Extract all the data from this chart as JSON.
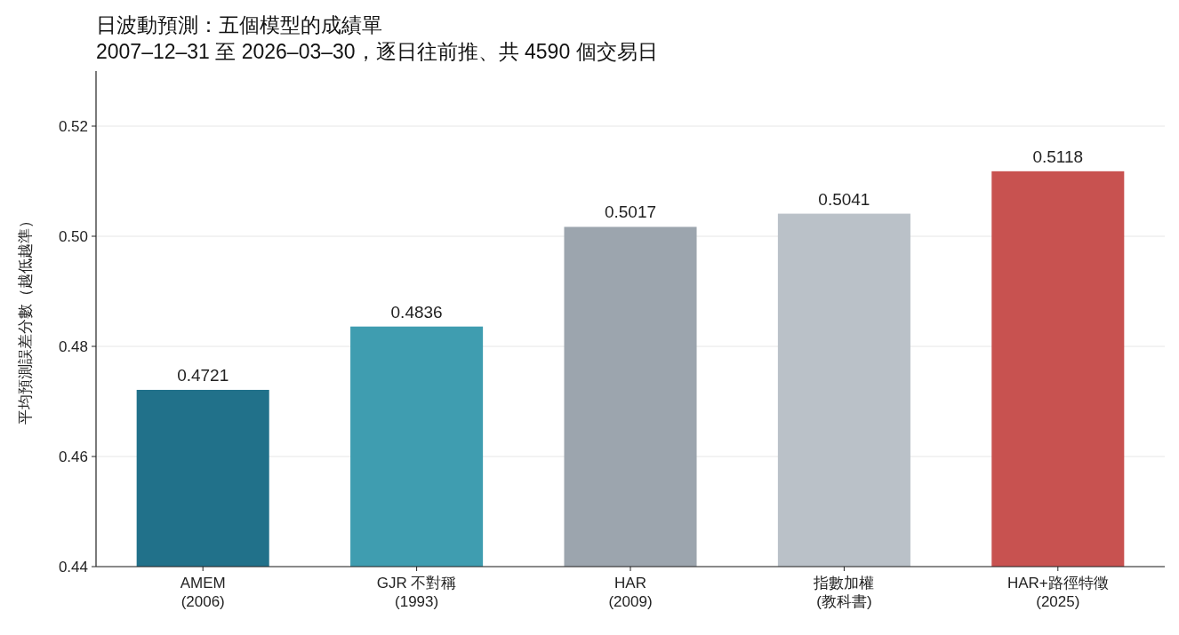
{
  "chart_data": {
    "type": "bar",
    "title": "日波動預測：五個模型的成績單",
    "subtitle": "2007–12–31 至 2026–03–30，逐日往前推、共 4590 個交易日",
    "ylabel": "平均預測誤差分數（越低越準）",
    "categories": [
      "AMEM\n(2006)",
      "GJR 不對稱\n(1993)",
      "HAR\n(2009)",
      "指數加權\n(教科書)",
      "HAR+路徑特徵\n(2025)"
    ],
    "values": [
      0.4721,
      0.4836,
      0.5017,
      0.5041,
      0.5118
    ],
    "colors": [
      "#21718a",
      "#3f9db0",
      "#9ca5ae",
      "#bac1c8",
      "#c85250"
    ],
    "ylim": [
      0.44,
      0.53
    ],
    "yticks": [
      {
        "value": 0.44,
        "label": "0.44"
      },
      {
        "value": 0.46,
        "label": "0.46"
      },
      {
        "value": 0.48,
        "label": "0.48"
      },
      {
        "value": 0.5,
        "label": "0.50"
      },
      {
        "value": 0.52,
        "label": "0.52"
      }
    ],
    "grid": "y",
    "data_labels": true
  }
}
